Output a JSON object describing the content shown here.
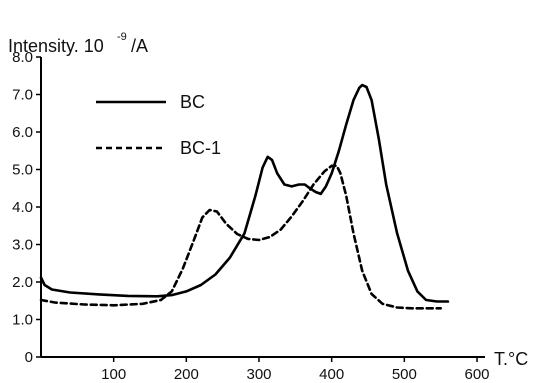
{
  "chart_data": {
    "type": "line",
    "ylabel_main": "Intensity. 10",
    "ylabel_exp": "-9",
    "ylabel_unit": "/A",
    "xlabel": "T.°C",
    "xlim": [
      0,
      600
    ],
    "ylim": [
      0,
      8.0
    ],
    "x_ticks": [
      100,
      200,
      300,
      400,
      500,
      600
    ],
    "y_ticks": [
      0,
      1.0,
      2.0,
      3.0,
      4.0,
      5.0,
      6.0,
      7.0,
      8.0
    ],
    "x_tick_labels": [
      "100",
      "200",
      "300",
      "400",
      "500",
      "600"
    ],
    "y_tick_labels": [
      "0",
      "1.0",
      "2.0",
      "3.0",
      "4.0",
      "5.0",
      "6.0",
      "7.0",
      "8.0"
    ],
    "grid": false,
    "legend_position": "top-left",
    "series": [
      {
        "name": "BC",
        "style": "solid",
        "color": "#000000",
        "points": [
          [
            0,
            2.12
          ],
          [
            5,
            1.92
          ],
          [
            15,
            1.8
          ],
          [
            40,
            1.72
          ],
          [
            80,
            1.67
          ],
          [
            120,
            1.63
          ],
          [
            160,
            1.62
          ],
          [
            180,
            1.65
          ],
          [
            200,
            1.75
          ],
          [
            220,
            1.92
          ],
          [
            240,
            2.2
          ],
          [
            260,
            2.65
          ],
          [
            280,
            3.3
          ],
          [
            295,
            4.3
          ],
          [
            305,
            5.05
          ],
          [
            312,
            5.34
          ],
          [
            318,
            5.25
          ],
          [
            325,
            4.9
          ],
          [
            335,
            4.6
          ],
          [
            345,
            4.55
          ],
          [
            355,
            4.6
          ],
          [
            363,
            4.6
          ],
          [
            370,
            4.5
          ],
          [
            378,
            4.4
          ],
          [
            385,
            4.35
          ],
          [
            392,
            4.55
          ],
          [
            400,
            4.9
          ],
          [
            410,
            5.5
          ],
          [
            420,
            6.2
          ],
          [
            430,
            6.85
          ],
          [
            438,
            7.18
          ],
          [
            442,
            7.25
          ],
          [
            448,
            7.2
          ],
          [
            455,
            6.85
          ],
          [
            465,
            5.8
          ],
          [
            475,
            4.6
          ],
          [
            490,
            3.3
          ],
          [
            505,
            2.3
          ],
          [
            518,
            1.75
          ],
          [
            530,
            1.52
          ],
          [
            545,
            1.48
          ],
          [
            560,
            1.48
          ]
        ]
      },
      {
        "name": "BC-1",
        "style": "dashed",
        "color": "#000000",
        "points": [
          [
            0,
            1.52
          ],
          [
            20,
            1.45
          ],
          [
            60,
            1.4
          ],
          [
            100,
            1.38
          ],
          [
            140,
            1.42
          ],
          [
            165,
            1.52
          ],
          [
            180,
            1.75
          ],
          [
            195,
            2.35
          ],
          [
            210,
            3.1
          ],
          [
            222,
            3.72
          ],
          [
            232,
            3.92
          ],
          [
            242,
            3.88
          ],
          [
            255,
            3.55
          ],
          [
            270,
            3.28
          ],
          [
            285,
            3.15
          ],
          [
            300,
            3.12
          ],
          [
            315,
            3.2
          ],
          [
            330,
            3.4
          ],
          [
            345,
            3.75
          ],
          [
            360,
            4.15
          ],
          [
            375,
            4.6
          ],
          [
            390,
            4.95
          ],
          [
            400,
            5.1
          ],
          [
            407,
            5.1
          ],
          [
            412,
            4.9
          ],
          [
            420,
            4.3
          ],
          [
            430,
            3.3
          ],
          [
            442,
            2.3
          ],
          [
            455,
            1.68
          ],
          [
            470,
            1.42
          ],
          [
            490,
            1.32
          ],
          [
            510,
            1.3
          ],
          [
            550,
            1.3
          ]
        ]
      }
    ]
  }
}
